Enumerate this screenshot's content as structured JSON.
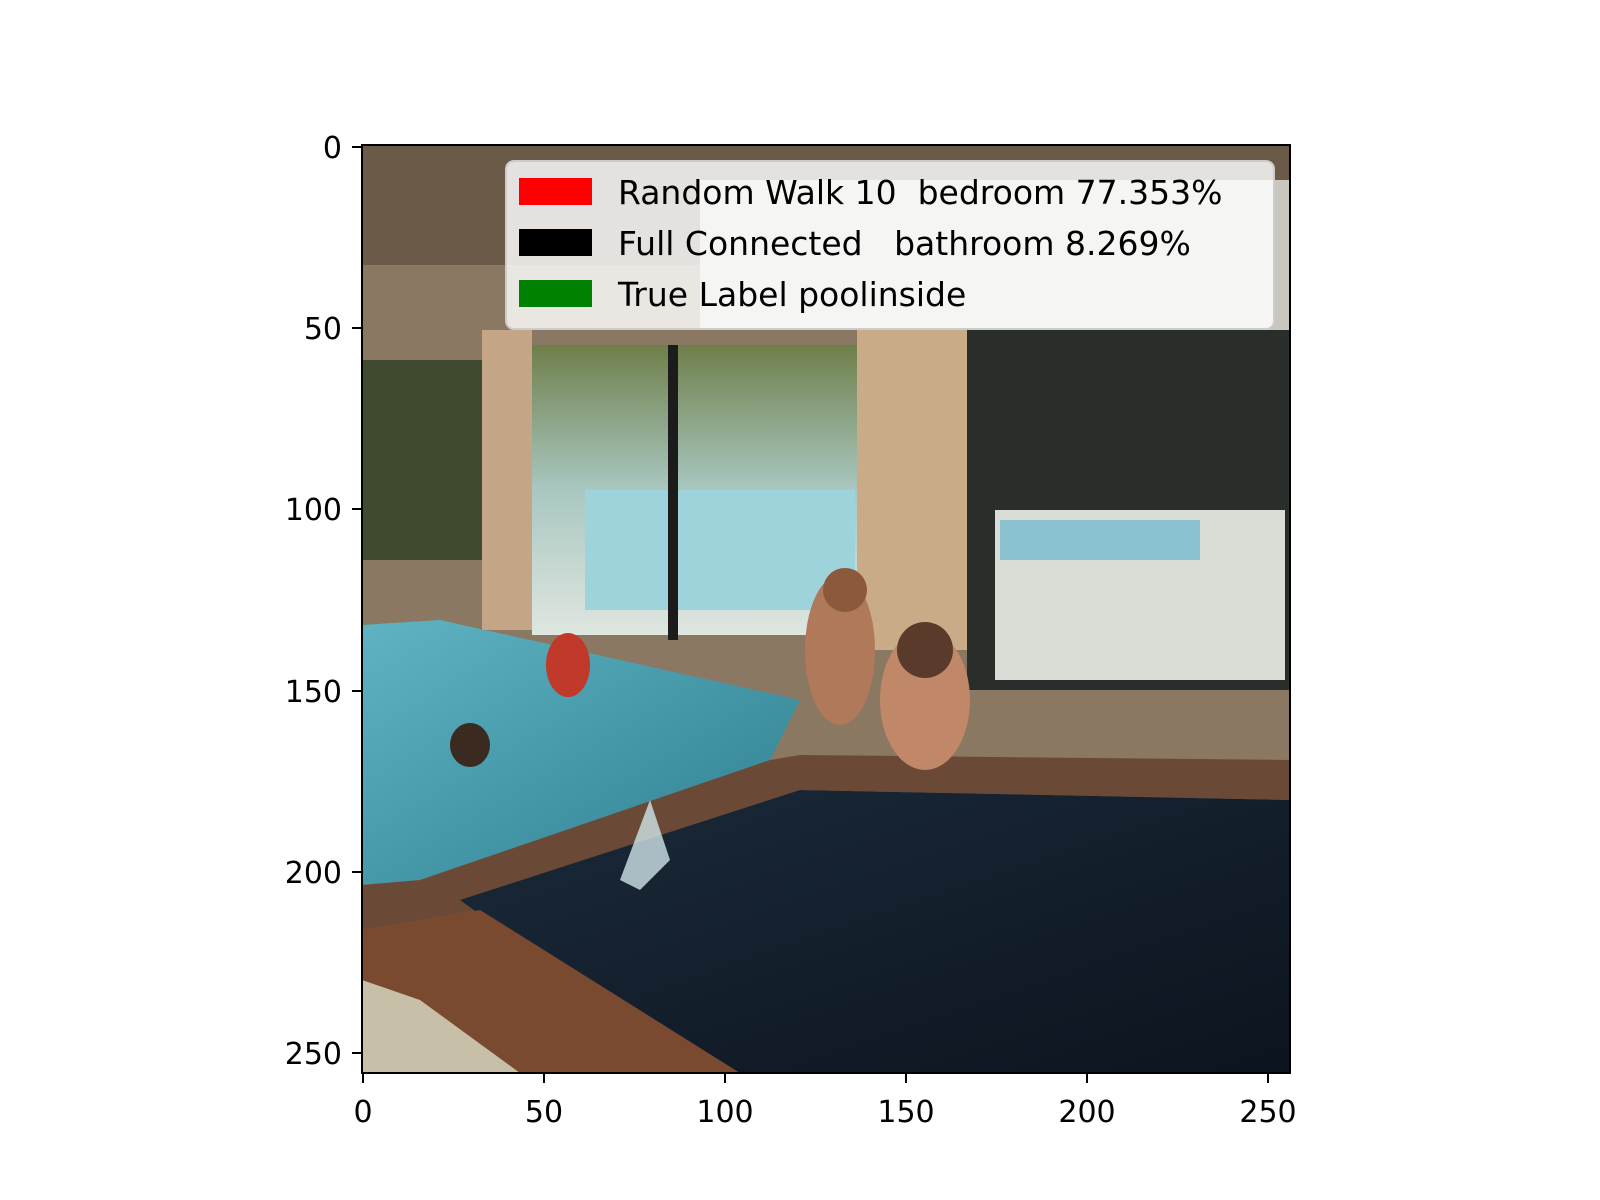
{
  "axes": {
    "x_ticks": [
      "0",
      "50",
      "100",
      "150",
      "200",
      "250"
    ],
    "y_ticks": [
      "0",
      "50",
      "100",
      "150",
      "200",
      "250"
    ]
  },
  "legend": {
    "items": [
      {
        "label": "Random Walk 10  bedroom 77.353%",
        "color": "#ff0000"
      },
      {
        "label": "Full Connected   bathroom 8.269%",
        "color": "#000000"
      },
      {
        "label": "True Label poolinside",
        "color": "#008000"
      }
    ]
  },
  "image": {
    "description_icon": "photo-icon"
  }
}
